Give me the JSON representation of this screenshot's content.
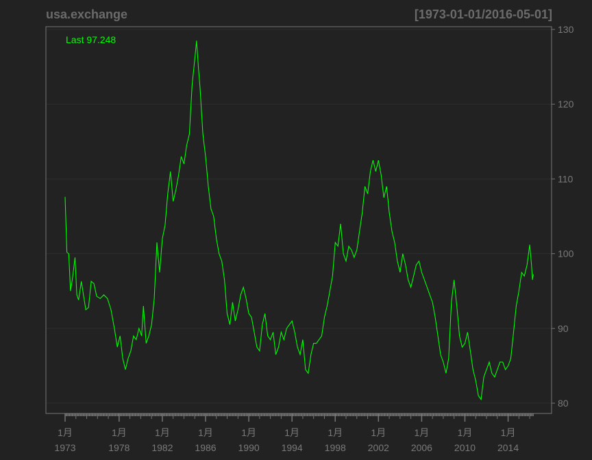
{
  "chart_data": {
    "type": "line",
    "title": "usa.exchange",
    "date_range": "[1973-01-01/2016-05-01]",
    "last_label": "Last 97.248",
    "series_color": "#00ff00",
    "background_color": "#222222",
    "axis_color": "#767676",
    "grid": true,
    "ylim": [
      79,
      130
    ],
    "xlim": [
      "1972-12",
      "2016-12"
    ],
    "y_ticks": [
      80,
      90,
      100,
      110,
      120,
      130
    ],
    "x_ticks": [
      {
        "month_label": "1月",
        "year_label": "1973",
        "date": "1973-01"
      },
      {
        "month_label": "1月",
        "year_label": "1978",
        "date": "1978-01"
      },
      {
        "month_label": "1月",
        "year_label": "1982",
        "date": "1982-01"
      },
      {
        "month_label": "1月",
        "year_label": "1986",
        "date": "1986-01"
      },
      {
        "month_label": "1月",
        "year_label": "1990",
        "date": "1990-01"
      },
      {
        "month_label": "1月",
        "year_label": "1994",
        "date": "1994-01"
      },
      {
        "month_label": "1月",
        "year_label": "1998",
        "date": "1998-01"
      },
      {
        "month_label": "1月",
        "year_label": "2002",
        "date": "2002-01"
      },
      {
        "month_label": "1月",
        "year_label": "2006",
        "date": "2006-01"
      },
      {
        "month_label": "1月",
        "year_label": "2010",
        "date": "2010-01"
      },
      {
        "month_label": "1月",
        "year_label": "2014",
        "date": "2014-01"
      }
    ],
    "series": [
      {
        "points": [
          [
            "1973-01",
            107.6
          ],
          [
            "1973-03",
            100.2
          ],
          [
            "1973-05",
            100.0
          ],
          [
            "1973-07",
            95.0
          ],
          [
            "1973-09",
            96.5
          ],
          [
            "1973-12",
            99.5
          ],
          [
            "1974-02",
            94.5
          ],
          [
            "1974-04",
            93.8
          ],
          [
            "1974-07",
            96.3
          ],
          [
            "1974-10",
            94.0
          ],
          [
            "1974-12",
            92.5
          ],
          [
            "1975-03",
            92.8
          ],
          [
            "1975-06",
            96.3
          ],
          [
            "1975-09",
            96.0
          ],
          [
            "1975-12",
            94.3
          ],
          [
            "1976-04",
            94.0
          ],
          [
            "1976-08",
            94.5
          ],
          [
            "1976-12",
            94.0
          ],
          [
            "1977-04",
            92.5
          ],
          [
            "1977-08",
            89.8
          ],
          [
            "1977-11",
            87.5
          ],
          [
            "1978-02",
            89.0
          ],
          [
            "1978-05",
            86.0
          ],
          [
            "1978-08",
            84.5
          ],
          [
            "1978-11",
            86.0
          ],
          [
            "1979-02",
            87.0
          ],
          [
            "1979-05",
            89.0
          ],
          [
            "1979-08",
            88.5
          ],
          [
            "1979-11",
            90.0
          ],
          [
            "1980-02",
            89.0
          ],
          [
            "1980-04",
            93.0
          ],
          [
            "1980-07",
            88.0
          ],
          [
            "1980-10",
            89.0
          ],
          [
            "1981-01",
            90.5
          ],
          [
            "1981-04",
            94.0
          ],
          [
            "1981-07",
            101.5
          ],
          [
            "1981-10",
            97.5
          ],
          [
            "1982-01",
            102.0
          ],
          [
            "1982-04",
            103.8
          ],
          [
            "1982-07",
            108.0
          ],
          [
            "1982-10",
            111.0
          ],
          [
            "1983-01",
            107.0
          ],
          [
            "1983-04",
            108.5
          ],
          [
            "1983-07",
            110.5
          ],
          [
            "1983-10",
            113.0
          ],
          [
            "1984-01",
            112.0
          ],
          [
            "1984-04",
            114.5
          ],
          [
            "1984-07",
            116.0
          ],
          [
            "1984-10",
            122.5
          ],
          [
            "1985-01",
            126.0
          ],
          [
            "1985-03",
            128.5
          ],
          [
            "1985-05",
            125.0
          ],
          [
            "1985-07",
            122.0
          ],
          [
            "1985-10",
            116.0
          ],
          [
            "1986-01",
            113.0
          ],
          [
            "1986-04",
            109.0
          ],
          [
            "1986-07",
            106.0
          ],
          [
            "1986-10",
            105.0
          ],
          [
            "1987-01",
            102.0
          ],
          [
            "1987-04",
            100.0
          ],
          [
            "1987-07",
            99.0
          ],
          [
            "1987-10",
            96.5
          ],
          [
            "1988-01",
            92.0
          ],
          [
            "1988-04",
            90.5
          ],
          [
            "1988-07",
            93.5
          ],
          [
            "1988-10",
            91.0
          ],
          [
            "1989-01",
            92.5
          ],
          [
            "1989-04",
            94.5
          ],
          [
            "1989-07",
            95.5
          ],
          [
            "1989-10",
            94.0
          ],
          [
            "1990-01",
            92.0
          ],
          [
            "1990-04",
            91.5
          ],
          [
            "1990-07",
            89.5
          ],
          [
            "1990-10",
            87.5
          ],
          [
            "1991-01",
            87.0
          ],
          [
            "1991-04",
            90.5
          ],
          [
            "1991-07",
            92.0
          ],
          [
            "1991-10",
            89.0
          ],
          [
            "1992-01",
            88.5
          ],
          [
            "1992-04",
            89.5
          ],
          [
            "1992-07",
            86.5
          ],
          [
            "1992-10",
            87.5
          ],
          [
            "1993-01",
            89.5
          ],
          [
            "1993-04",
            88.5
          ],
          [
            "1993-07",
            90.0
          ],
          [
            "1993-10",
            90.5
          ],
          [
            "1994-01",
            91.0
          ],
          [
            "1994-04",
            89.5
          ],
          [
            "1994-07",
            87.5
          ],
          [
            "1994-10",
            86.5
          ],
          [
            "1995-01",
            88.5
          ],
          [
            "1995-04",
            84.5
          ],
          [
            "1995-07",
            84.0
          ],
          [
            "1995-10",
            86.5
          ],
          [
            "1996-01",
            88.0
          ],
          [
            "1996-04",
            88.0
          ],
          [
            "1996-07",
            88.5
          ],
          [
            "1996-10",
            89.0
          ],
          [
            "1997-01",
            91.5
          ],
          [
            "1997-04",
            93.0
          ],
          [
            "1997-07",
            95.0
          ],
          [
            "1997-10",
            97.0
          ],
          [
            "1998-01",
            101.5
          ],
          [
            "1998-04",
            101.0
          ],
          [
            "1998-07",
            104.0
          ],
          [
            "1998-10",
            100.0
          ],
          [
            "1999-01",
            99.0
          ],
          [
            "1999-04",
            101.0
          ],
          [
            "1999-07",
            100.5
          ],
          [
            "1999-10",
            99.5
          ],
          [
            "2000-01",
            100.5
          ],
          [
            "2000-04",
            103.0
          ],
          [
            "2000-07",
            105.5
          ],
          [
            "2000-10",
            109.0
          ],
          [
            "2001-01",
            108.0
          ],
          [
            "2001-04",
            111.0
          ],
          [
            "2001-07",
            112.5
          ],
          [
            "2001-10",
            111.0
          ],
          [
            "2002-01",
            112.5
          ],
          [
            "2002-04",
            110.5
          ],
          [
            "2002-07",
            107.5
          ],
          [
            "2002-10",
            109.0
          ],
          [
            "2003-01",
            105.5
          ],
          [
            "2003-04",
            103.0
          ],
          [
            "2003-07",
            101.5
          ],
          [
            "2003-10",
            99.0
          ],
          [
            "2004-01",
            97.5
          ],
          [
            "2004-04",
            100.0
          ],
          [
            "2004-07",
            98.5
          ],
          [
            "2004-10",
            96.5
          ],
          [
            "2005-01",
            95.5
          ],
          [
            "2005-04",
            97.0
          ],
          [
            "2005-07",
            98.5
          ],
          [
            "2005-10",
            99.0
          ],
          [
            "2006-01",
            97.5
          ],
          [
            "2006-04",
            96.5
          ],
          [
            "2006-07",
            95.5
          ],
          [
            "2006-10",
            94.5
          ],
          [
            "2007-01",
            93.5
          ],
          [
            "2007-04",
            91.5
          ],
          [
            "2007-07",
            89.0
          ],
          [
            "2007-10",
            86.5
          ],
          [
            "2008-01",
            85.5
          ],
          [
            "2008-04",
            84.0
          ],
          [
            "2008-07",
            86.0
          ],
          [
            "2008-10",
            93.5
          ],
          [
            "2009-01",
            96.5
          ],
          [
            "2009-04",
            93.0
          ],
          [
            "2009-07",
            89.0
          ],
          [
            "2009-10",
            87.5
          ],
          [
            "2010-01",
            88.0
          ],
          [
            "2010-04",
            89.5
          ],
          [
            "2010-07",
            87.0
          ],
          [
            "2010-10",
            84.5
          ],
          [
            "2011-01",
            83.0
          ],
          [
            "2011-04",
            81.0
          ],
          [
            "2011-07",
            80.5
          ],
          [
            "2011-10",
            83.5
          ],
          [
            "2012-01",
            84.5
          ],
          [
            "2012-04",
            85.5
          ],
          [
            "2012-07",
            84.0
          ],
          [
            "2012-10",
            83.5
          ],
          [
            "2013-01",
            84.5
          ],
          [
            "2013-04",
            85.5
          ],
          [
            "2013-07",
            85.5
          ],
          [
            "2013-10",
            84.5
          ],
          [
            "2014-01",
            85.0
          ],
          [
            "2014-04",
            86.0
          ],
          [
            "2014-07",
            89.5
          ],
          [
            "2014-10",
            93.0
          ],
          [
            "2015-01",
            95.0
          ],
          [
            "2015-04",
            97.5
          ],
          [
            "2015-07",
            97.0
          ],
          [
            "2015-10",
            98.5
          ],
          [
            "2016-01",
            101.2
          ],
          [
            "2016-03",
            98.5
          ],
          [
            "2016-04",
            96.5
          ],
          [
            "2016-05",
            97.248
          ]
        ]
      }
    ]
  }
}
